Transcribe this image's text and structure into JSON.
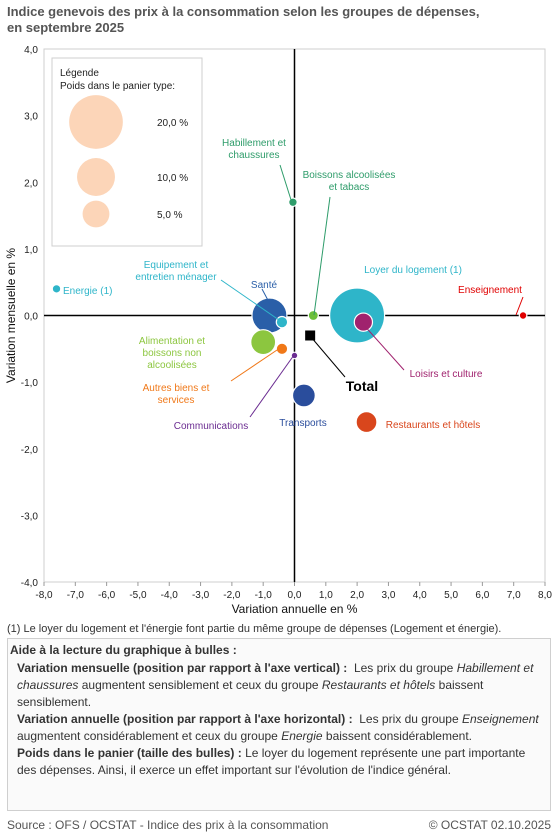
{
  "title": {
    "line1": "Indice genevois des prix à la consommation selon les groupes de dépenses,",
    "line2": "en septembre 2025"
  },
  "chart_data": {
    "type": "scatter",
    "xlabel": "Variation annuelle en %",
    "ylabel": "Variation mensuelle en %",
    "xlim": [
      -8,
      8
    ],
    "ylim": [
      -4,
      4
    ],
    "x_ticks": [
      "-8,0",
      "-7,0",
      "-6,0",
      "-5,0",
      "-4,0",
      "-3,0",
      "-2,0",
      "-1,0",
      "0,0",
      "1,0",
      "2,0",
      "3,0",
      "4,0",
      "5,0",
      "6,0",
      "7,0",
      "8,0"
    ],
    "y_ticks": [
      "4,0",
      "3,0",
      "2,0",
      "1,0",
      "0,0",
      "-1,0",
      "-2,0",
      "-3,0",
      "-4,0"
    ],
    "grid": false,
    "legend": {
      "placement": "top-left",
      "title_line1": "Légende",
      "title_line2": "Poids dans le panier type:",
      "entries": [
        {
          "label": "20,0 %",
          "weight": 20,
          "color": "#fcd5b8"
        },
        {
          "label": "10,0 %",
          "weight": 10,
          "color": "#fcd5b8"
        },
        {
          "label": "5,0 %",
          "weight": 5,
          "color": "#fcd5b8"
        }
      ]
    },
    "points": [
      {
        "name": "Energie (1)",
        "x": -7.6,
        "y": 0.4,
        "weight": 0.5,
        "color": "#2eb5c9",
        "label_color": "#2eb5c9"
      },
      {
        "name": "Habillement et chaussures",
        "x": -0.05,
        "y": 1.7,
        "weight": 0.5,
        "color": "#2e9c6a",
        "label_color": "#2e9c6a"
      },
      {
        "name": "Boissons alcoolisées et tabacs",
        "x": 0.6,
        "y": 0.0,
        "weight": 0.7,
        "color": "#6cbf3a",
        "label_color": "#2e9c6a"
      },
      {
        "name": "Logement (loyer)",
        "x": 2.0,
        "y": 0.0,
        "weight": 21,
        "color": "#2eb5c9",
        "label_color": "#2eb5c9"
      },
      {
        "name": "Enseignement",
        "x": 7.3,
        "y": 0.0,
        "weight": 0.4,
        "color": "#e00000",
        "label_color": "#e00000"
      },
      {
        "name": "Santé",
        "x": -0.8,
        "y": 0.0,
        "weight": 8.5,
        "color": "#2a5fa8",
        "label_color": "#2a5fa8"
      },
      {
        "name": "Equipement et entretien ménager",
        "x": -0.4,
        "y": -0.1,
        "weight": 0.9,
        "color": "#2eb5c9",
        "label_color": "#2eb5c9"
      },
      {
        "name": "Alimentation et boissons non alcoolisées",
        "x": -1.0,
        "y": -0.4,
        "weight": 4.3,
        "color": "#8cc63f",
        "label_color": "#8cc63f"
      },
      {
        "name": "Autres biens et services",
        "x": -0.4,
        "y": -0.5,
        "weight": 0.9,
        "color": "#f07818",
        "label_color": "#f07818"
      },
      {
        "name": "Communications",
        "x": 0.0,
        "y": -0.6,
        "weight": 0.3,
        "color": "#6b2c91",
        "label_color": "#6b2c91"
      },
      {
        "name": "Transports",
        "x": 0.3,
        "y": -1.2,
        "weight": 3.6,
        "color": "#2a4d9c",
        "label_color": "#2a4d9c"
      },
      {
        "name": "Loisirs et culture",
        "x": 2.2,
        "y": -0.1,
        "weight": 2.3,
        "color": "#a0226e",
        "label_color": "#a0226e"
      },
      {
        "name": "Restaurants et hôtels",
        "x": 2.3,
        "y": -1.6,
        "weight": 3.0,
        "color": "#d9461c",
        "label_color": "#d9461c"
      },
      {
        "name": "Total",
        "x": 0.5,
        "y": -0.3,
        "weight": 0,
        "color": "#000000",
        "label_color": "#000000",
        "marker": "square"
      }
    ],
    "labels": [
      {
        "text_lines": [
          "Energie (1)"
        ],
        "color": "#2eb5c9"
      },
      {
        "text_lines": [
          "Habillement et",
          "chaussures"
        ],
        "color": "#2e9c6a"
      },
      {
        "text_lines": [
          "Boissons alcoolisées",
          "et tabacs"
        ],
        "color": "#2e9c6a"
      },
      {
        "text_lines": [
          "Loyer du logement (1)"
        ],
        "color": "#2eb5c9"
      },
      {
        "text_lines": [
          "Enseignement"
        ],
        "color": "#e00000"
      },
      {
        "text_lines": [
          "Santé"
        ],
        "color": "#2a5fa8"
      },
      {
        "text_lines": [
          "Equipement et",
          "entretien ménager"
        ],
        "color": "#2eb5c9"
      },
      {
        "text_lines": [
          "Alimentation et",
          "boissons non",
          "alcoolisées"
        ],
        "color": "#8cc63f"
      },
      {
        "text_lines": [
          "Autres biens et",
          "services"
        ],
        "color": "#f07818"
      },
      {
        "text_lines": [
          "Communications"
        ],
        "color": "#6b2c91"
      },
      {
        "text_lines": [
          "Transports"
        ],
        "color": "#2a4d9c"
      },
      {
        "text_lines": [
          "Loisirs et culture"
        ],
        "color": "#a0226e"
      },
      {
        "text_lines": [
          "Restaurants et hôtels"
        ],
        "color": "#d9461c"
      },
      {
        "text_lines": [
          "Total"
        ],
        "color": "#000000"
      }
    ]
  },
  "footnote": "(1) Le loyer du logement et l'énergie font partie du même groupe de dépenses (Logement et énergie).",
  "help": {
    "title": "Aide à la lecture du graphique à bulles :",
    "monthly_label": "Variation mensuelle (position par rapport à l'axe vertical) :",
    "monthly_t1": "Les prix du groupe",
    "monthly_i1": "Habillement et chaussures",
    "monthly_t2": "augmentent sensiblement et ceux du groupe",
    "monthly_i2": "Restaurants et hôtels",
    "monthly_t3": "baissent sensiblement.",
    "annual_label": "Variation annuelle (position par rapport à l'axe horizontal) :",
    "annual_t1": "Les prix du groupe",
    "annual_i1": "Enseignement",
    "annual_t2": "augmentent considérablement et ceux du groupe",
    "annual_i2": "Energie",
    "annual_t3": "baissent considérablement.",
    "weight_label": "Poids dans le panier (taille des bulles) :",
    "weight_text": "Le loyer du logement représente une part importante des dépenses. Ainsi, il exerce un effet important sur l'évolution de l'indice général."
  },
  "source": "Source : OFS / OCSTAT - Indice des prix à la consommation",
  "credit": "© OCSTAT 02.10.2025"
}
